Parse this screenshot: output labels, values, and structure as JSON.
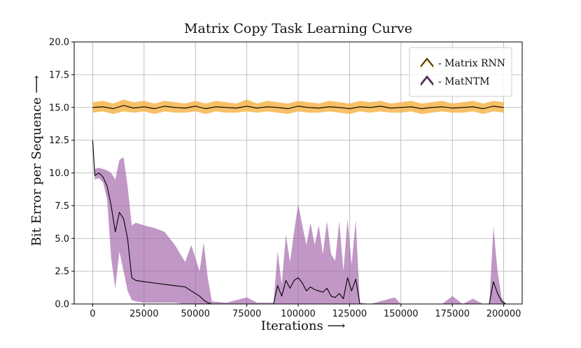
{
  "chart_data": {
    "type": "line",
    "title": "Matrix Copy Task Learning Curve",
    "xlabel": "Iterations ⟶",
    "ylabel": "Bit Error per Sequence ⟶",
    "xlim": [
      -9000,
      209000
    ],
    "ylim": [
      0,
      20
    ],
    "xticks": [
      0,
      25000,
      50000,
      75000,
      100000,
      125000,
      150000,
      175000,
      200000
    ],
    "xtick_labels": [
      "0",
      "25000",
      "50000",
      "75000",
      "100000",
      "125000",
      "150000",
      "175000",
      "200000"
    ],
    "yticks": [
      0,
      2.5,
      5,
      7.5,
      10,
      12.5,
      15,
      17.5,
      20
    ],
    "ytick_labels": [
      "0.0",
      "2.5",
      "5.0",
      "7.5",
      "10.0",
      "12.5",
      "15.0",
      "17.5",
      "20.0"
    ],
    "grid": true,
    "legend_position": "top-right",
    "series": [
      {
        "name": "- Matrix RNN",
        "color": "#000000",
        "band_color": "#f5b041",
        "x": [
          0,
          5000,
          10000,
          15000,
          20000,
          25000,
          30000,
          35000,
          40000,
          45000,
          50000,
          55000,
          60000,
          65000,
          70000,
          75000,
          80000,
          85000,
          90000,
          95000,
          100000,
          105000,
          110000,
          115000,
          120000,
          125000,
          130000,
          135000,
          140000,
          145000,
          150000,
          155000,
          160000,
          165000,
          170000,
          175000,
          180000,
          185000,
          190000,
          195000,
          200000
        ],
        "mean": [
          15.0,
          15.05,
          14.9,
          15.15,
          14.95,
          15.05,
          14.9,
          15.1,
          15.0,
          14.95,
          15.1,
          14.9,
          15.05,
          15.0,
          14.95,
          15.1,
          14.95,
          15.05,
          15.0,
          14.9,
          15.1,
          15.0,
          14.95,
          15.05,
          15.0,
          14.9,
          15.05,
          15.0,
          15.1,
          14.95,
          15.0,
          15.05,
          14.9,
          15.0,
          15.05,
          14.95,
          15.0,
          15.05,
          14.9,
          15.1,
          15.0
        ],
        "lower": [
          14.6,
          14.7,
          14.5,
          14.7,
          14.6,
          14.7,
          14.5,
          14.7,
          14.6,
          14.6,
          14.7,
          14.5,
          14.7,
          14.6,
          14.6,
          14.7,
          14.6,
          14.7,
          14.6,
          14.5,
          14.7,
          14.6,
          14.6,
          14.7,
          14.6,
          14.5,
          14.7,
          14.6,
          14.7,
          14.6,
          14.6,
          14.7,
          14.5,
          14.6,
          14.7,
          14.6,
          14.6,
          14.7,
          14.5,
          14.7,
          14.6
        ],
        "upper": [
          15.4,
          15.5,
          15.3,
          15.6,
          15.4,
          15.5,
          15.3,
          15.5,
          15.4,
          15.3,
          15.5,
          15.3,
          15.5,
          15.4,
          15.3,
          15.6,
          15.3,
          15.5,
          15.4,
          15.3,
          15.5,
          15.4,
          15.3,
          15.5,
          15.4,
          15.3,
          15.5,
          15.4,
          15.5,
          15.3,
          15.4,
          15.5,
          15.3,
          15.4,
          15.5,
          15.3,
          15.4,
          15.5,
          15.3,
          15.5,
          15.4
        ]
      },
      {
        "name": "- MatNTM",
        "color": "#000000",
        "band_color": "#a05fa8",
        "x": [
          0,
          1000,
          3000,
          5000,
          7000,
          9000,
          11000,
          13000,
          15000,
          17000,
          19000,
          21000,
          25000,
          30000,
          35000,
          40000,
          45000,
          48000,
          52000,
          54000,
          56000,
          58000,
          65000,
          75000,
          80000,
          85000,
          88000,
          90000,
          92000,
          94000,
          96000,
          98000,
          100000,
          102000,
          104000,
          106000,
          108000,
          110000,
          112000,
          114000,
          116000,
          118000,
          120000,
          122000,
          124000,
          126000,
          128000,
          130000,
          135000,
          147000,
          150000,
          160000,
          170000,
          175000,
          180000,
          185000,
          190000,
          193000,
          195000,
          197000,
          199000,
          201000
        ],
        "mean": [
          12.5,
          9.8,
          10.0,
          9.7,
          9.0,
          7.5,
          5.5,
          7.0,
          6.5,
          5.0,
          2.0,
          1.8,
          1.7,
          1.6,
          1.5,
          1.4,
          1.3,
          1.0,
          0.6,
          0.3,
          0.1,
          0.0,
          0.0,
          0.0,
          0.0,
          0.0,
          0.0,
          1.4,
          0.6,
          1.8,
          1.2,
          1.8,
          2.0,
          1.6,
          1.0,
          1.3,
          1.1,
          1.0,
          0.9,
          1.2,
          0.6,
          0.5,
          0.8,
          0.4,
          2.0,
          1.0,
          1.9,
          0.0,
          0.0,
          0.0,
          0.0,
          0.0,
          0.0,
          0.0,
          0.0,
          0.0,
          0.0,
          0.0,
          1.7,
          0.8,
          0.2,
          0.0
        ],
        "lower": [
          12.0,
          9.5,
          9.6,
          9.3,
          8.0,
          3.5,
          1.2,
          4.0,
          2.5,
          1.0,
          0.3,
          0.2,
          0.1,
          0.1,
          0.1,
          0.1,
          0.0,
          0.0,
          0.0,
          0.0,
          0.0,
          0.0,
          0.0,
          0.0,
          0.0,
          0.0,
          0.0,
          0.0,
          0.0,
          0.0,
          0.0,
          0.0,
          0.0,
          0.0,
          0.0,
          0.0,
          0.0,
          0.0,
          0.0,
          0.0,
          0.0,
          0.0,
          0.0,
          0.0,
          0.0,
          0.0,
          0.0,
          0.0,
          0.0,
          0.0,
          0.0,
          0.0,
          0.0,
          0.0,
          0.0,
          0.0,
          0.0,
          0.0,
          0.0,
          0.0,
          0.0,
          0.0
        ],
        "upper": [
          13.0,
          10.3,
          10.4,
          10.3,
          10.2,
          10.0,
          9.5,
          11.0,
          11.2,
          9.0,
          6.0,
          6.2,
          6.0,
          5.8,
          5.5,
          4.5,
          3.2,
          4.5,
          2.5,
          4.7,
          2.0,
          0.2,
          0.1,
          0.5,
          0.1,
          0.1,
          0.1,
          4.0,
          1.5,
          5.3,
          3.2,
          5.5,
          7.6,
          6.0,
          4.5,
          6.2,
          4.5,
          6.0,
          3.8,
          6.3,
          3.8,
          3.3,
          6.3,
          2.5,
          6.5,
          3.0,
          6.4,
          0.1,
          0.0,
          0.5,
          0.0,
          0.0,
          0.0,
          0.6,
          0.0,
          0.4,
          0.0,
          0.0,
          5.9,
          2.5,
          0.5,
          0.0
        ]
      }
    ]
  }
}
